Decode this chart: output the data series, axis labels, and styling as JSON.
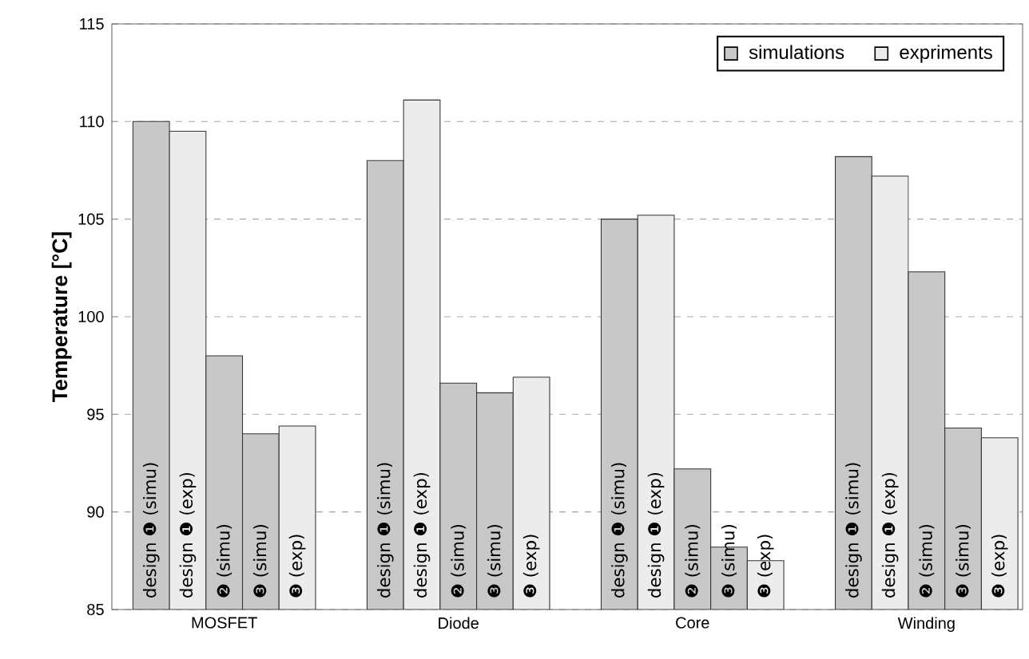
{
  "chart_data": {
    "type": "bar",
    "ylabel": "Temperature [°C]",
    "categories": [
      "MOSFET",
      "Diode",
      "Core",
      "Winding"
    ],
    "series": [
      {
        "name": "simulations",
        "color": "#c8c8c8",
        "values": [
          110,
          108,
          105,
          108.2
        ],
        "value_labels": [
          "design ❶ (simu)",
          "design ❶ (simu)",
          "design ❶ (simu)",
          "design ❶ (simu)"
        ]
      },
      {
        "name": "expriments",
        "color": "#ececec",
        "values": [
          109.5,
          111.1,
          105.2,
          107.2
        ],
        "value_labels": [
          "design ❶ (exp)",
          "design ❶ (exp)",
          "design ❶ (exp)",
          "design ❶ (exp)"
        ]
      },
      {
        "color": "#c8c8c8",
        "values": [
          98,
          96.6,
          92.2,
          102.3
        ],
        "value_labels": [
          "❷ (simu)",
          "❷ (simu)",
          "❷ (simu)",
          "❷ (simu)"
        ]
      },
      {
        "color": "#c8c8c8",
        "values": [
          94,
          96.1,
          88.2,
          94.3
        ],
        "value_labels": [
          "❸ (simu)",
          "❸ (simu)",
          "❸ (simu)",
          "❸ (simu)"
        ]
      },
      {
        "color": "#ececec",
        "values": [
          94.4,
          96.9,
          87.5,
          93.8
        ],
        "value_labels": [
          "❸ (exp)",
          "❸ (exp)",
          "❸ (exp)",
          "❸ (exp)"
        ]
      }
    ],
    "ylim": [
      85,
      115
    ],
    "yticks": [
      85,
      90,
      95,
      100,
      105,
      110,
      115
    ],
    "grid": "y",
    "legend": "top right"
  }
}
